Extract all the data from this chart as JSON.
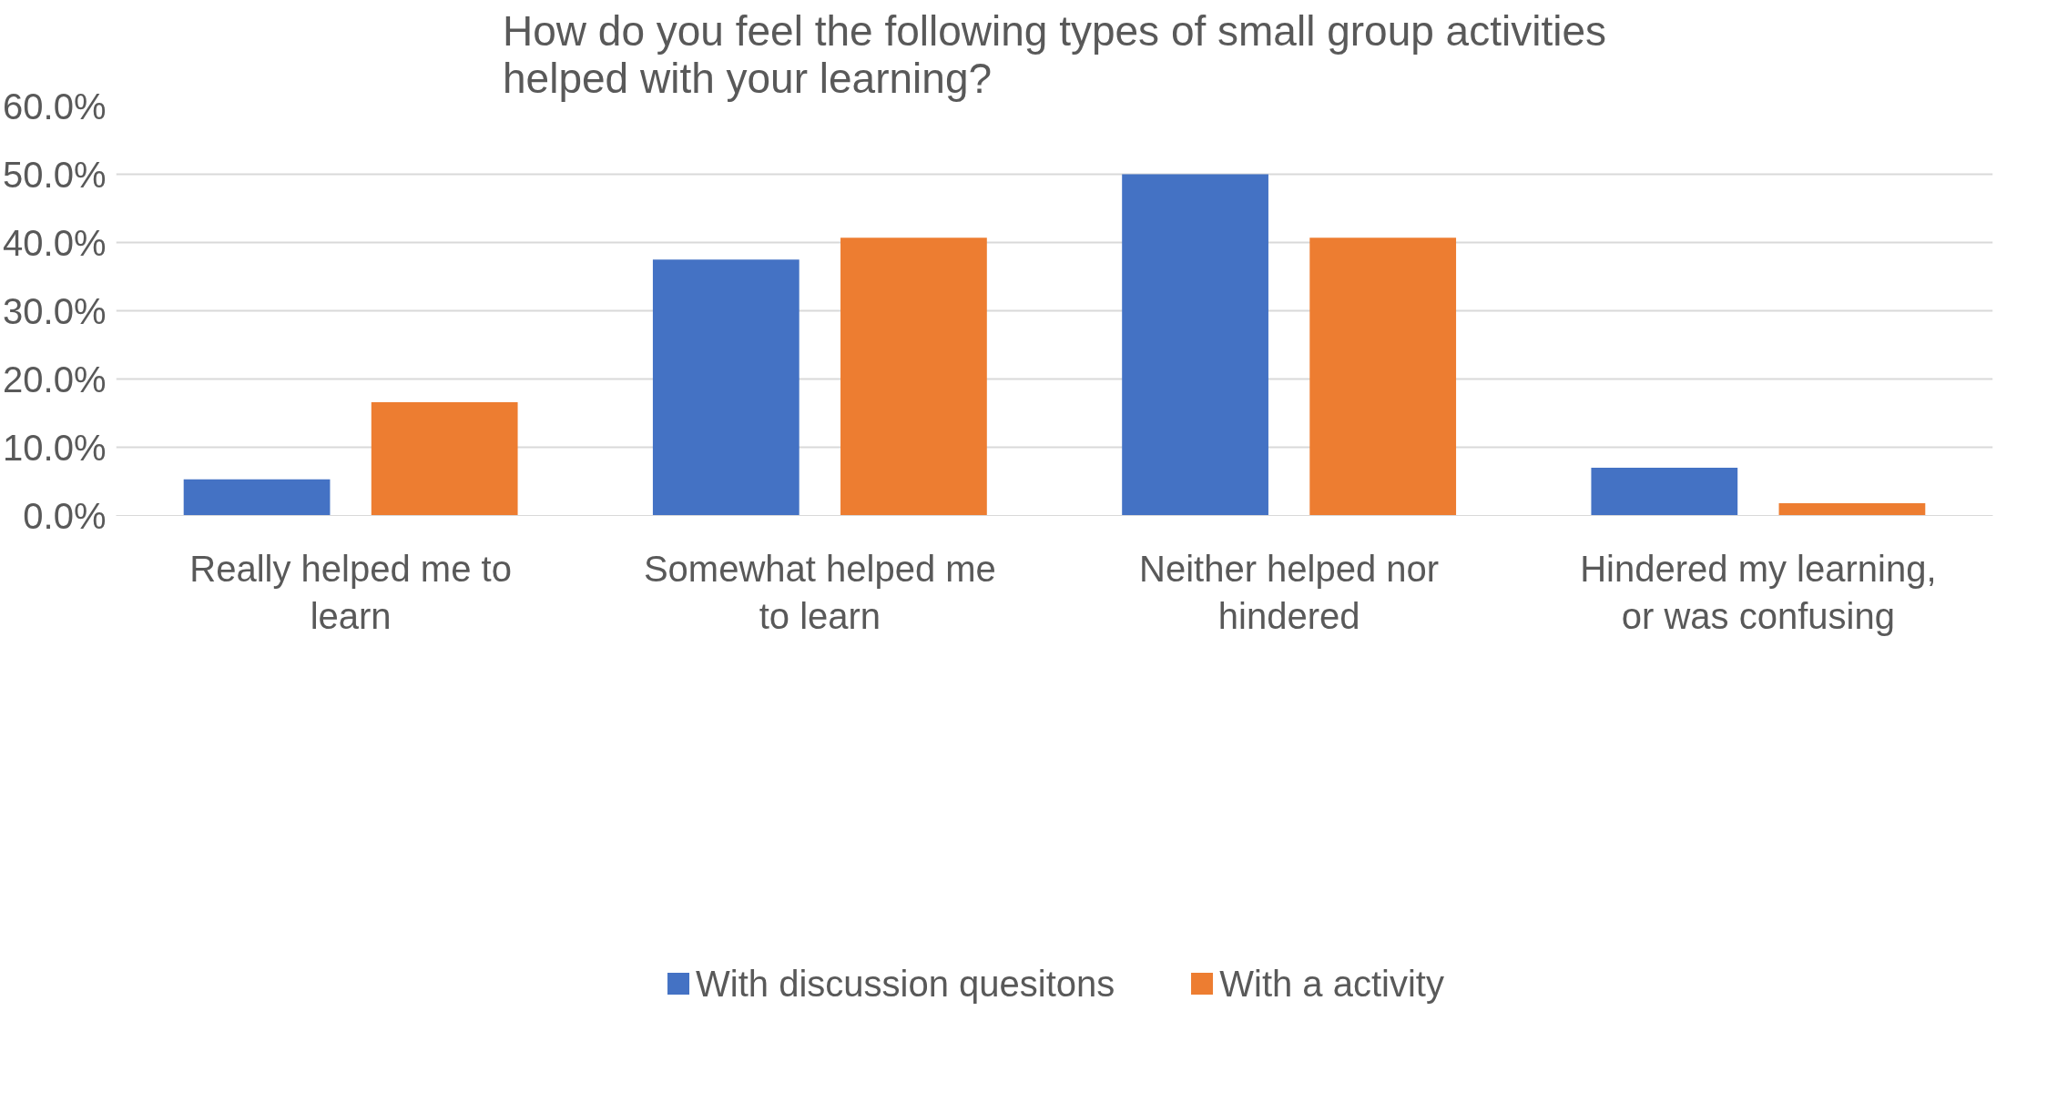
{
  "chart_data": {
    "type": "bar",
    "title": "How do you feel the following types of small group activities\nhelped with your learning?",
    "categories": [
      "Really helped me to\nlearn",
      "Somewhat helped me\nto learn",
      "Neither helped nor\nhindered",
      "Hindered my learning,\nor was confusing"
    ],
    "series": [
      {
        "name": "With discussion quesitons",
        "color": "#4472c4",
        "values": [
          5.3,
          37.5,
          50.0,
          7.0
        ]
      },
      {
        "name": "With a activity",
        "color": "#ed7d31",
        "values": [
          16.6,
          40.7,
          40.7,
          1.8
        ]
      }
    ],
    "ylim": [
      0,
      60
    ],
    "yticks": [
      {
        "value": 0,
        "label": "0.0%"
      },
      {
        "value": 10,
        "label": "10.0%"
      },
      {
        "value": 20,
        "label": "20.0%"
      },
      {
        "value": 30,
        "label": "30.0%"
      },
      {
        "value": 40,
        "label": "40.0%"
      },
      {
        "value": 50,
        "label": "50.0%"
      },
      {
        "value": 60,
        "label": "60.0%"
      }
    ],
    "grid": "y",
    "legend": "bottom"
  }
}
